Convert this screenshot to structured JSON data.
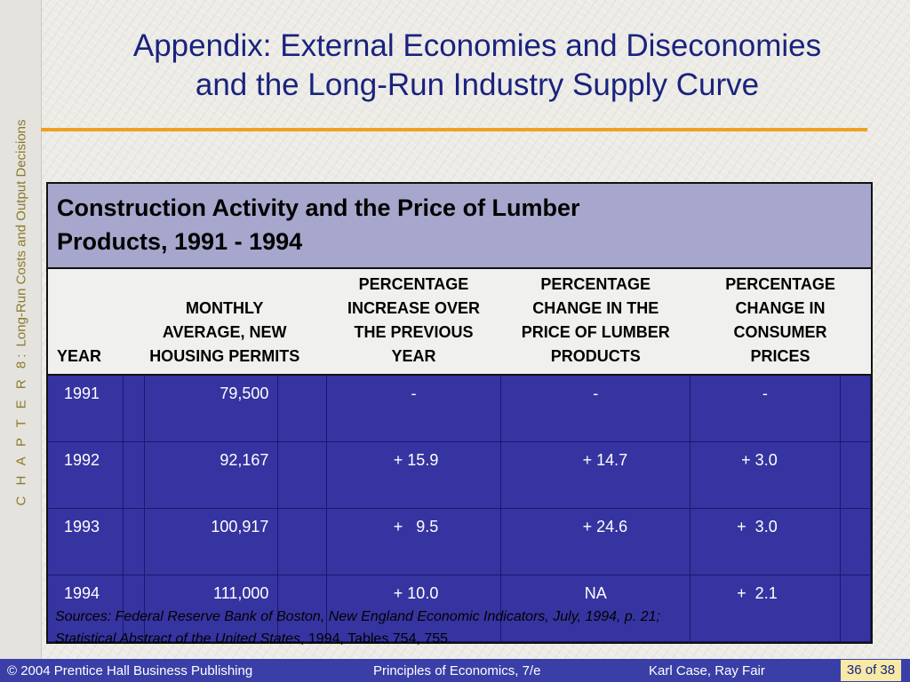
{
  "sidebar": {
    "chapter": "C H A P T E R  8:",
    "topic": "Long-Run Costs and Output Decisions"
  },
  "title": {
    "line1": "Appendix:  External Economies and Diseconomies",
    "line2": "and the Long-Run Industry Supply Curve"
  },
  "table": {
    "caption_line1": "Construction Activity and the Price of Lumber",
    "caption_line2": "Products, 1991 - 1994",
    "headers": {
      "year": "YEAR",
      "permits": "MONTHLY AVERAGE, NEW HOUSING PERMITS",
      "increase": "PERCENTAGE INCREASE OVER THE PREVIOUS YEAR",
      "lumber": "PERCENTAGE CHANGE IN THE PRICE OF LUMBER PRODUCTS",
      "cpi": "PERCENTAGE CHANGE IN CONSUMER PRICES"
    },
    "rows": [
      {
        "year": "1991",
        "permits": "79,500",
        "increase": "-",
        "lumber": "-",
        "cpi": "-"
      },
      {
        "year": "1992",
        "permits": "92,167",
        "increase": "+ 15.9",
        "lumber": "+ 14.7",
        "cpi": "+  3.0"
      },
      {
        "year": "1993",
        "permits": "100,917",
        "increase": "+   9.5",
        "lumber": "+ 24.6",
        "cpi": "+  3.0"
      },
      {
        "year": "1994",
        "permits": "111,000",
        "increase": "+ 10.0",
        "lumber": "NA",
        "cpi": "+  2.1"
      }
    ]
  },
  "sources": {
    "italic1": "Sources:  Federal Reserve Bank of Boston, New England Economic Indicators, July, 1994, p. 21;",
    "italic2": "Statistical Abstract of the United States",
    "normal": ", 1994, Tables 754, 755."
  },
  "footer": {
    "copyright": "© 2004 Prentice Hall Business Publishing",
    "book": "Principles of Economics, 7/e",
    "authors": "Karl Case, Ray Fair",
    "page": "36 of 38"
  },
  "colors": {
    "title": "#1a237e",
    "accent_rule": "#f0a020",
    "table_caption_bg": "#a7a6cc",
    "table_body_bg": "#3634a0",
    "footer_bg": "#3a3fa7",
    "page_box_bg": "#f7e9a6"
  }
}
